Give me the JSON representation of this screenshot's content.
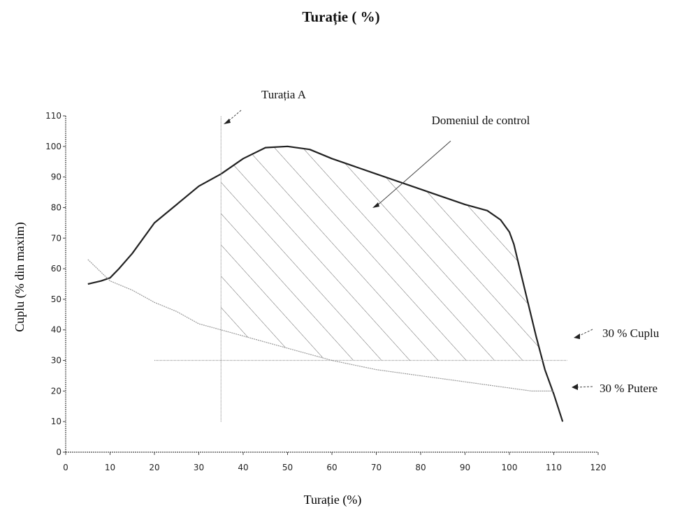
{
  "page": {
    "title": "Turație ( %)"
  },
  "chart_data": {
    "type": "line",
    "title": "Turație ( %)",
    "xlabel": "Turație (%)",
    "ylabel": "Cuplu (% din maxim)",
    "xlim": [
      0,
      120
    ],
    "ylim": [
      0,
      110
    ],
    "x_ticks": [
      0,
      10,
      20,
      30,
      40,
      50,
      60,
      70,
      80,
      90,
      100,
      110,
      120
    ],
    "y_ticks": [
      0,
      10,
      20,
      30,
      40,
      50,
      60,
      70,
      80,
      90,
      100,
      110
    ],
    "grid": false,
    "series": [
      {
        "values_xy": [
          [
            5,
            55
          ],
          [
            8,
            56
          ],
          [
            10,
            57
          ],
          [
            12,
            60
          ],
          [
            15,
            65
          ],
          [
            20,
            75
          ],
          [
            25,
            81
          ],
          [
            30,
            87
          ],
          [
            35,
            91
          ],
          [
            40,
            96
          ],
          [
            45,
            99.6
          ],
          [
            50,
            100
          ],
          [
            55,
            99
          ],
          [
            60,
            96
          ],
          [
            70,
            91
          ],
          [
            80,
            86
          ],
          [
            90,
            81
          ],
          [
            95,
            79
          ],
          [
            98,
            76
          ],
          [
            100,
            72
          ],
          [
            101,
            68
          ],
          [
            102,
            62
          ],
          [
            104,
            50
          ],
          [
            106,
            38
          ],
          [
            108,
            27
          ],
          [
            110,
            19
          ],
          [
            112,
            10
          ]
        ],
        "color": "#222222"
      },
      {
        "values_xy": [
          [
            5,
            63
          ],
          [
            10,
            56
          ],
          [
            15,
            53
          ],
          [
            20,
            49
          ],
          [
            25,
            46
          ],
          [
            30,
            42
          ],
          [
            35,
            40
          ],
          [
            40,
            38
          ],
          [
            50,
            34
          ],
          [
            60,
            30
          ],
          [
            70,
            27
          ],
          [
            80,
            25
          ],
          [
            90,
            23
          ],
          [
            100,
            21
          ],
          [
            105,
            20
          ],
          [
            110,
            20
          ]
        ],
        "color": "#999999"
      },
      {
        "values_xy": [
          [
            20,
            30
          ],
          [
            113,
            30
          ]
        ],
        "color": "#999999"
      },
      {
        "values_xy": [
          [
            35,
            10
          ],
          [
            35,
            110
          ]
        ],
        "color": "#999999"
      }
    ],
    "hatched_region": {
      "from_x": 35,
      "to_x": 109
    },
    "annotations": [
      {
        "text": "Turația A",
        "target": [
          35,
          110
        ]
      },
      {
        "text": "Domeniul de control",
        "target": [
          70,
          80
        ]
      },
      {
        "text": "30 % Cuplu",
        "target": [
          115,
          31
        ]
      },
      {
        "text": "30 % Putere",
        "target": [
          113,
          20
        ]
      }
    ]
  }
}
